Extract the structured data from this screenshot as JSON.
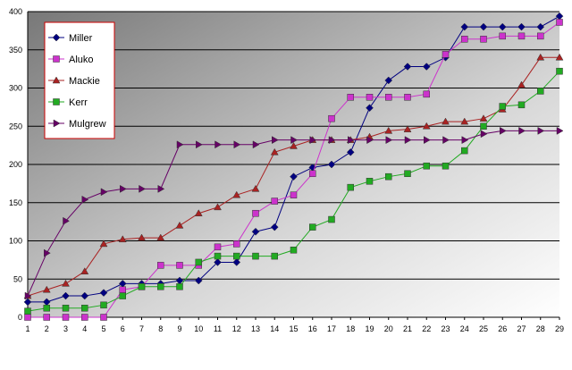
{
  "chart_data": {
    "type": "line",
    "title": "",
    "xlabel": "",
    "ylabel": "",
    "x": [
      1,
      2,
      3,
      4,
      5,
      6,
      7,
      8,
      9,
      10,
      11,
      12,
      13,
      14,
      15,
      16,
      17,
      18,
      19,
      20,
      21,
      22,
      23,
      24,
      25,
      26,
      27,
      28,
      29
    ],
    "ylim": [
      0,
      400
    ],
    "yticks": [
      0,
      50,
      100,
      150,
      200,
      250,
      300,
      350,
      400
    ],
    "grid": "horizontal",
    "legend_position": "top-left",
    "series": [
      {
        "name": "Miller",
        "color": "#000080",
        "marker": "diamond",
        "values": [
          20,
          20,
          28,
          28,
          32,
          44,
          44,
          44,
          48,
          48,
          72,
          72,
          112,
          118,
          184,
          196,
          200,
          216,
          274,
          310,
          328,
          328,
          340,
          380,
          380,
          380,
          380,
          380,
          394
        ]
      },
      {
        "name": "Aluko",
        "color": "#cc33cc",
        "marker": "square",
        "values": [
          0,
          0,
          0,
          0,
          0,
          36,
          40,
          68,
          68,
          68,
          92,
          96,
          136,
          152,
          160,
          188,
          260,
          288,
          288,
          288,
          288,
          292,
          344,
          364,
          364,
          368,
          368,
          368,
          386
        ]
      },
      {
        "name": "Mackie",
        "color": "#aa2222",
        "marker": "triangle",
        "values": [
          28,
          36,
          44,
          60,
          96,
          102,
          104,
          104,
          120,
          136,
          144,
          160,
          168,
          216,
          224,
          232,
          232,
          232,
          236,
          244,
          246,
          250,
          256,
          256,
          260,
          272,
          304,
          340,
          340
        ]
      },
      {
        "name": "Kerr",
        "color": "#22aa22",
        "marker": "square",
        "values": [
          8,
          12,
          12,
          12,
          16,
          28,
          40,
          40,
          40,
          72,
          80,
          80,
          80,
          80,
          88,
          118,
          128,
          170,
          178,
          184,
          188,
          198,
          198,
          218,
          250,
          276,
          278,
          296,
          322
        ]
      },
      {
        "name": "Mulgrew",
        "color": "#660066",
        "marker": "triangle-right",
        "values": [
          28,
          84,
          126,
          154,
          164,
          168,
          168,
          168,
          226,
          226,
          226,
          226,
          226,
          232,
          232,
          232,
          232,
          232,
          232,
          232,
          232,
          232,
          232,
          232,
          240,
          244,
          244,
          244,
          244
        ]
      }
    ]
  }
}
